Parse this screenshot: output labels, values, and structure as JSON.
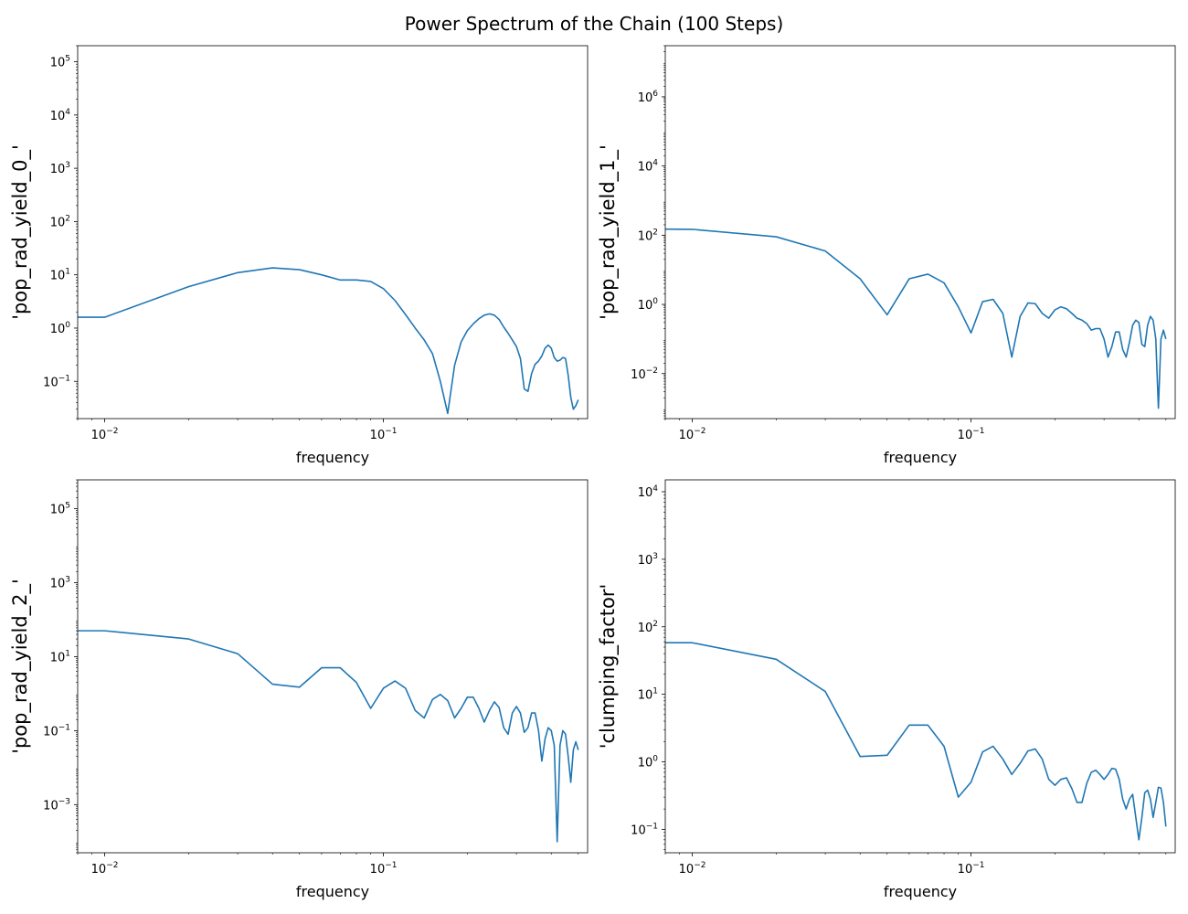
{
  "title": "Power Spectrum of the Chain (100 Steps)",
  "line_color": "#1f77b4",
  "chart_data": [
    {
      "type": "line",
      "xscale": "log",
      "yscale": "log",
      "xlim": [
        0.008,
        0.54
      ],
      "ylim": [
        0.02,
        200000
      ],
      "xlabel": "frequency",
      "ylabel": "'pop_rad_yield_0_'",
      "xticks": [
        {
          "value": 0.01,
          "base": "10",
          "exp": "−2"
        },
        {
          "value": 0.1,
          "base": "10",
          "exp": "−1"
        }
      ],
      "yticks": [
        {
          "value": 0.1,
          "base": "10",
          "exp": "−1"
        },
        {
          "value": 1,
          "base": "10",
          "exp": "0"
        },
        {
          "value": 10,
          "base": "10",
          "exp": "1"
        },
        {
          "value": 100,
          "base": "10",
          "exp": "2"
        },
        {
          "value": 1000,
          "base": "10",
          "exp": "3"
        },
        {
          "value": 10000,
          "base": "10",
          "exp": "4"
        },
        {
          "value": 100000,
          "base": "10",
          "exp": "5"
        }
      ],
      "x": [
        0.008,
        0.01,
        0.02,
        0.03,
        0.04,
        0.05,
        0.06,
        0.07,
        0.08,
        0.09,
        0.1,
        0.11,
        0.12,
        0.13,
        0.14,
        0.15,
        0.16,
        0.17,
        0.18,
        0.19,
        0.2,
        0.21,
        0.22,
        0.23,
        0.24,
        0.25,
        0.26,
        0.27,
        0.28,
        0.29,
        0.3,
        0.31,
        0.32,
        0.33,
        0.34,
        0.35,
        0.36,
        0.37,
        0.38,
        0.39,
        0.4,
        0.41,
        0.42,
        0.43,
        0.44,
        0.45,
        0.46,
        0.47,
        0.48,
        0.49,
        0.5
      ],
      "y": [
        1.6,
        1.6,
        6,
        11,
        13.5,
        12.5,
        10,
        8,
        8,
        7.5,
        5.5,
        3.3,
        1.8,
        1.0,
        0.6,
        0.33,
        0.1,
        0.025,
        0.2,
        0.55,
        0.9,
        1.2,
        1.5,
        1.75,
        1.85,
        1.75,
        1.45,
        1.05,
        0.8,
        0.6,
        0.45,
        0.27,
        0.072,
        0.065,
        0.14,
        0.21,
        0.24,
        0.3,
        0.42,
        0.48,
        0.42,
        0.28,
        0.24,
        0.25,
        0.28,
        0.27,
        0.13,
        0.05,
        0.03,
        0.035,
        0.045
      ]
    },
    {
      "type": "line",
      "xscale": "log",
      "yscale": "log",
      "xlim": [
        0.008,
        0.54
      ],
      "ylim": [
        0.0005,
        30000000
      ],
      "xlabel": "frequency",
      "ylabel": "'pop_rad_yield_1_'",
      "xticks": [
        {
          "value": 0.01,
          "base": "10",
          "exp": "−2"
        },
        {
          "value": 0.1,
          "base": "10",
          "exp": "−1"
        }
      ],
      "yticks": [
        {
          "value": 0.01,
          "base": "10",
          "exp": "−2"
        },
        {
          "value": 1,
          "base": "10",
          "exp": "0"
        },
        {
          "value": 100,
          "base": "10",
          "exp": "2"
        },
        {
          "value": 10000,
          "base": "10",
          "exp": "4"
        },
        {
          "value": 1000000,
          "base": "10",
          "exp": "6"
        }
      ],
      "x": [
        0.008,
        0.01,
        0.02,
        0.03,
        0.04,
        0.05,
        0.06,
        0.07,
        0.08,
        0.09,
        0.1,
        0.11,
        0.12,
        0.13,
        0.14,
        0.15,
        0.16,
        0.17,
        0.18,
        0.19,
        0.2,
        0.21,
        0.22,
        0.23,
        0.24,
        0.25,
        0.26,
        0.27,
        0.28,
        0.29,
        0.3,
        0.31,
        0.32,
        0.33,
        0.34,
        0.35,
        0.36,
        0.37,
        0.38,
        0.39,
        0.4,
        0.41,
        0.42,
        0.43,
        0.44,
        0.45,
        0.46,
        0.47,
        0.48,
        0.49,
        0.5
      ],
      "y": [
        150,
        148,
        90,
        35,
        5.5,
        0.5,
        5.5,
        7.5,
        4.2,
        0.85,
        0.15,
        1.2,
        1.4,
        0.55,
        0.03,
        0.45,
        1.1,
        1.05,
        0.55,
        0.4,
        0.7,
        0.85,
        0.75,
        0.55,
        0.4,
        0.35,
        0.28,
        0.18,
        0.2,
        0.2,
        0.1,
        0.03,
        0.06,
        0.16,
        0.16,
        0.05,
        0.03,
        0.08,
        0.25,
        0.35,
        0.3,
        0.07,
        0.06,
        0.25,
        0.45,
        0.35,
        0.1,
        0.001,
        0.1,
        0.18,
        0.1
      ]
    },
    {
      "type": "line",
      "xscale": "log",
      "yscale": "log",
      "xlim": [
        0.008,
        0.54
      ],
      "ylim": [
        5e-05,
        600000
      ],
      "xlabel": "frequency",
      "ylabel": "'pop_rad_yield_2_'",
      "xticks": [
        {
          "value": 0.01,
          "base": "10",
          "exp": "−2"
        },
        {
          "value": 0.1,
          "base": "10",
          "exp": "−1"
        }
      ],
      "yticks": [
        {
          "value": 0.001,
          "base": "10",
          "exp": "−3"
        },
        {
          "value": 0.1,
          "base": "10",
          "exp": "−1"
        },
        {
          "value": 10,
          "base": "10",
          "exp": "1"
        },
        {
          "value": 1000,
          "base": "10",
          "exp": "3"
        },
        {
          "value": 100000,
          "base": "10",
          "exp": "5"
        }
      ],
      "x": [
        0.008,
        0.01,
        0.02,
        0.03,
        0.04,
        0.05,
        0.06,
        0.07,
        0.08,
        0.09,
        0.1,
        0.11,
        0.12,
        0.13,
        0.14,
        0.15,
        0.16,
        0.17,
        0.18,
        0.19,
        0.2,
        0.21,
        0.22,
        0.23,
        0.24,
        0.25,
        0.26,
        0.27,
        0.28,
        0.29,
        0.3,
        0.31,
        0.32,
        0.33,
        0.34,
        0.35,
        0.36,
        0.37,
        0.38,
        0.39,
        0.4,
        0.41,
        0.42,
        0.43,
        0.44,
        0.45,
        0.46,
        0.47,
        0.48,
        0.49,
        0.5
      ],
      "y": [
        50,
        50,
        30,
        12,
        1.8,
        1.5,
        5,
        5,
        2,
        0.4,
        1.4,
        2.2,
        1.4,
        0.35,
        0.22,
        0.7,
        0.95,
        0.65,
        0.22,
        0.4,
        0.8,
        0.8,
        0.4,
        0.17,
        0.35,
        0.6,
        0.42,
        0.12,
        0.08,
        0.3,
        0.45,
        0.3,
        0.09,
        0.12,
        0.3,
        0.3,
        0.1,
        0.015,
        0.06,
        0.12,
        0.1,
        0.04,
        0.0001,
        0.04,
        0.1,
        0.08,
        0.02,
        0.004,
        0.03,
        0.05,
        0.03
      ]
    },
    {
      "type": "line",
      "xscale": "log",
      "yscale": "log",
      "xlim": [
        0.008,
        0.54
      ],
      "ylim": [
        0.045,
        15000
      ],
      "xlabel": "frequency",
      "ylabel": "'clumping_factor'",
      "xticks": [
        {
          "value": 0.01,
          "base": "10",
          "exp": "−2"
        },
        {
          "value": 0.1,
          "base": "10",
          "exp": "−1"
        }
      ],
      "yticks": [
        {
          "value": 0.1,
          "base": "10",
          "exp": "−1"
        },
        {
          "value": 1,
          "base": "10",
          "exp": "0"
        },
        {
          "value": 10,
          "base": "10",
          "exp": "1"
        },
        {
          "value": 100,
          "base": "10",
          "exp": "2"
        },
        {
          "value": 1000,
          "base": "10",
          "exp": "3"
        },
        {
          "value": 10000,
          "base": "10",
          "exp": "4"
        }
      ],
      "x": [
        0.008,
        0.01,
        0.02,
        0.03,
        0.04,
        0.05,
        0.06,
        0.07,
        0.08,
        0.09,
        0.1,
        0.11,
        0.12,
        0.13,
        0.14,
        0.15,
        0.16,
        0.17,
        0.18,
        0.19,
        0.2,
        0.21,
        0.22,
        0.23,
        0.24,
        0.25,
        0.26,
        0.27,
        0.28,
        0.29,
        0.3,
        0.31,
        0.32,
        0.33,
        0.34,
        0.35,
        0.36,
        0.37,
        0.38,
        0.39,
        0.4,
        0.41,
        0.42,
        0.43,
        0.44,
        0.45,
        0.46,
        0.47,
        0.48,
        0.49,
        0.5
      ],
      "y": [
        58,
        58,
        33,
        11,
        1.2,
        1.25,
        3.5,
        3.5,
        1.7,
        0.3,
        0.5,
        1.4,
        1.7,
        1.1,
        0.65,
        0.95,
        1.45,
        1.55,
        1.1,
        0.55,
        0.45,
        0.55,
        0.58,
        0.4,
        0.25,
        0.25,
        0.48,
        0.7,
        0.75,
        0.65,
        0.55,
        0.65,
        0.8,
        0.78,
        0.55,
        0.28,
        0.2,
        0.28,
        0.33,
        0.15,
        0.07,
        0.15,
        0.35,
        0.38,
        0.28,
        0.15,
        0.25,
        0.42,
        0.41,
        0.25,
        0.11
      ]
    }
  ]
}
